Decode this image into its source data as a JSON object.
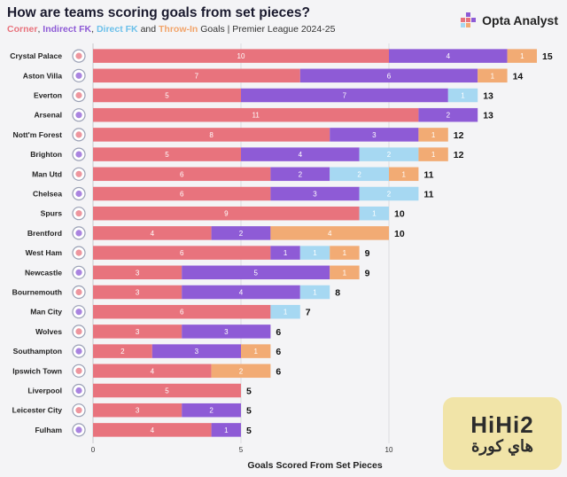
{
  "header": {
    "title": "How are teams scoring goals from set pieces?",
    "legend_corner": "Corner",
    "legend_sep1": ", ",
    "legend_indirect": "Indirect FK",
    "legend_sep2": ", ",
    "legend_direct": "Direct FK",
    "legend_and": " and ",
    "legend_throwin": "Throw-In",
    "legend_tail": " Goals | Premier League 2024-25"
  },
  "brand": {
    "name": "Opta Analyst"
  },
  "watermark": {
    "latin": "HiHi2",
    "arabic": "هاي كورة"
  },
  "colors": {
    "corner": "#e8737d",
    "indirect": "#8e5bd6",
    "direct": "#a6d8f2",
    "throwin": "#f2ab74"
  },
  "chart_data": {
    "type": "bar",
    "orientation": "horizontal",
    "stacked": true,
    "title": "How are teams scoring goals from set pieces?",
    "xlabel": "Goals Scored From Set Pieces",
    "xlim": [
      0,
      15
    ],
    "xticks": [
      0,
      5,
      10
    ],
    "categories": [
      "Crystal Palace",
      "Aston Villa",
      "Everton",
      "Arsenal",
      "Nott'm Forest",
      "Brighton",
      "Man Utd",
      "Chelsea",
      "Spurs",
      "Brentford",
      "West Ham",
      "Newcastle",
      "Bournemouth",
      "Man City",
      "Wolves",
      "Southampton",
      "Ipswich Town",
      "Liverpool",
      "Leicester City",
      "Fulham"
    ],
    "series": [
      {
        "name": "Corner",
        "values": [
          10,
          7,
          5,
          11,
          8,
          5,
          6,
          6,
          9,
          4,
          6,
          3,
          3,
          6,
          3,
          2,
          4,
          5,
          3,
          4
        ]
      },
      {
        "name": "Indirect FK",
        "values": [
          4,
          6,
          7,
          2,
          3,
          4,
          2,
          3,
          0,
          2,
          1,
          5,
          4,
          0,
          3,
          3,
          0,
          0,
          2,
          1
        ]
      },
      {
        "name": "Direct FK",
        "values": [
          0,
          0,
          1,
          0,
          0,
          2,
          2,
          2,
          1,
          0,
          1,
          0,
          1,
          1,
          0,
          0,
          0,
          0,
          0,
          0
        ]
      },
      {
        "name": "Throw-In",
        "values": [
          1,
          1,
          0,
          0,
          1,
          1,
          1,
          0,
          0,
          4,
          1,
          1,
          0,
          0,
          0,
          1,
          2,
          0,
          0,
          0
        ]
      }
    ],
    "totals": [
      15,
      14,
      13,
      13,
      12,
      12,
      11,
      11,
      10,
      10,
      9,
      9,
      8,
      7,
      6,
      6,
      6,
      5,
      5,
      5
    ]
  }
}
